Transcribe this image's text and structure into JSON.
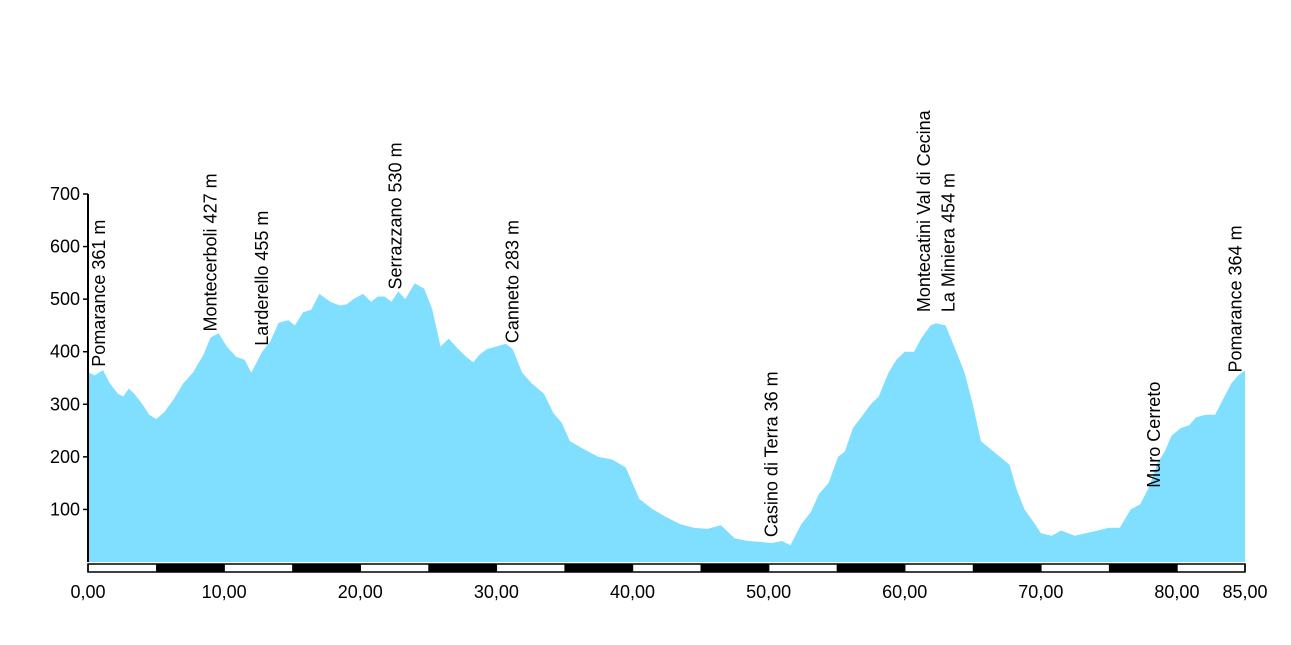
{
  "chart_data": {
    "type": "area",
    "title": "",
    "xlabel": "",
    "ylabel": "",
    "xlim": [
      0,
      85
    ],
    "ylim": [
      0,
      700
    ],
    "grid": false,
    "legend": "none",
    "fill_color": "#80dfff",
    "scale_bar_color": "#000000",
    "x_ticks": [
      "0,00",
      "10,00",
      "20,00",
      "30,00",
      "40,00",
      "50,00",
      "60,00",
      "70,00",
      "80,00",
      "85,00"
    ],
    "x_tick_values": [
      0,
      10,
      20,
      30,
      40,
      50,
      60,
      70,
      80,
      85
    ],
    "y_ticks": [
      "100",
      "200",
      "300",
      "400",
      "500",
      "600",
      "700"
    ],
    "y_tick_values": [
      100,
      200,
      300,
      400,
      500,
      600,
      700
    ],
    "scale_segments": [
      0,
      5,
      10,
      15,
      20,
      25,
      30,
      35,
      40,
      45,
      50,
      55,
      60,
      65,
      70,
      75,
      80,
      85
    ],
    "profile": {
      "x": [
        0,
        0.5,
        1.1,
        1.6,
        2.2,
        2.6,
        3.0,
        3.4,
        4.0,
        4.5,
        5.0,
        5.6,
        6.3,
        7.0,
        7.7,
        8.5,
        9.0,
        9.6,
        10.2,
        10.9,
        11.5,
        12.0,
        12.8,
        13.4,
        14.0,
        14.7,
        15.2,
        15.8,
        16.4,
        17.0,
        17.8,
        18.5,
        19.0,
        19.5,
        20.2,
        20.8,
        21.3,
        21.8,
        22.3,
        22.8,
        23.3,
        24.0,
        24.7,
        25.3,
        25.9,
        26.5,
        27.2,
        27.8,
        28.3,
        28.8,
        29.3,
        30.0,
        30.7,
        31.2,
        31.9,
        32.6,
        33.5,
        34.2,
        34.8,
        35.4,
        36.4,
        37.5,
        38.5,
        39.5,
        40.5,
        41.5,
        42.5,
        43.5,
        44.5,
        45.5,
        46.5,
        47.5,
        48.5,
        49.5,
        50.2,
        51.0,
        51.6,
        52.4,
        53.1,
        53.7,
        54.4,
        55.1,
        55.6,
        56.2,
        56.8,
        57.5,
        58.1,
        58.8,
        59.4,
        60.0,
        60.7,
        61.2,
        61.9,
        62.3,
        63.0,
        63.8,
        64.4,
        65.0,
        65.6,
        66.3,
        67.0,
        67.7,
        68.2,
        68.8,
        69.5,
        70.0,
        70.8,
        71.5,
        72.5,
        73.3,
        74.2,
        75.0,
        75.8,
        76.6,
        77.3,
        77.9,
        78.6,
        79.1,
        79.6,
        80.3,
        80.9,
        81.4,
        82.1,
        82.8,
        83.4,
        84.0,
        84.5,
        85.0
      ],
      "y": [
        361,
        355,
        365,
        340,
        320,
        315,
        330,
        320,
        300,
        280,
        272,
        285,
        310,
        340,
        360,
        395,
        427,
        435,
        410,
        390,
        385,
        360,
        400,
        420,
        455,
        460,
        450,
        475,
        480,
        510,
        495,
        488,
        490,
        500,
        510,
        495,
        505,
        505,
        495,
        515,
        500,
        530,
        520,
        480,
        410,
        425,
        405,
        390,
        380,
        395,
        405,
        410,
        415,
        405,
        360,
        340,
        320,
        283,
        265,
        230,
        215,
        200,
        195,
        180,
        120,
        100,
        85,
        72,
        65,
        63,
        70,
        45,
        40,
        38,
        36,
        40,
        32,
        72,
        95,
        130,
        150,
        200,
        210,
        255,
        275,
        300,
        315,
        360,
        385,
        400,
        400,
        425,
        450,
        454,
        450,
        400,
        360,
        300,
        230,
        215,
        200,
        185,
        140,
        100,
        75,
        55,
        50,
        60,
        50,
        55,
        60,
        65,
        65,
        100,
        110,
        140,
        190,
        210,
        240,
        255,
        260,
        275,
        280,
        280,
        310,
        340,
        355,
        364
      ]
    },
    "annotations": [
      {
        "x": 0.8,
        "label": "Pomarance 361 m"
      },
      {
        "x": 9.0,
        "label": "Montecerboli 427 m"
      },
      {
        "x": 12.8,
        "label": "Larderello 455 m"
      },
      {
        "x": 22.6,
        "label": "Serrazzano 530 m"
      },
      {
        "x": 31.2,
        "label": "Canneto 283 m"
      },
      {
        "x": 50.2,
        "label": "Casino di Terra 36 m"
      },
      {
        "x": 61.4,
        "label": "Montecatini Val di Cecina"
      },
      {
        "x": 63.2,
        "label": "La Miniera 454 m"
      },
      {
        "x": 78.3,
        "label": "Muro Cerreto"
      },
      {
        "x": 84.3,
        "label": "Pomarance 364 m"
      }
    ]
  }
}
